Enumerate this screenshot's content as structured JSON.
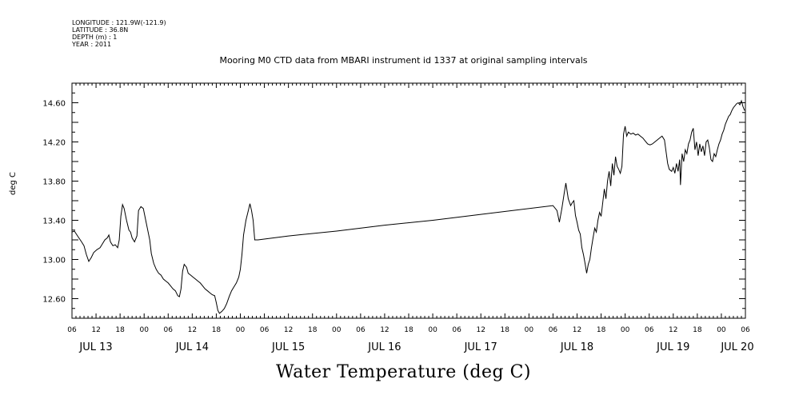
{
  "header": {
    "longitude": "LONGITUDE : 121.9W(-121.9)",
    "latitude": "LATITUDE : 36.8N",
    "depth": "DEPTH (m) : 1",
    "year": "YEAR : 2011"
  },
  "chart_data": {
    "type": "line",
    "title": "Mooring M0 CTD data from MBARI instrument id 1337 at original sampling intervals",
    "subtitle": "Water Temperature (deg C)",
    "ylabel": "deg C",
    "xlabel": "",
    "ylim": [
      12.4,
      14.8
    ],
    "yticks": [
      "12.60",
      "13.00",
      "13.40",
      "13.80",
      "14.20",
      "14.60"
    ],
    "xlim_hours": [
      6,
      174
    ],
    "hour_tick_labels": [
      "06",
      "12",
      "18",
      "00",
      "06",
      "12",
      "18",
      "00",
      "06",
      "12",
      "18",
      "00",
      "06",
      "12",
      "18",
      "00",
      "06",
      "12",
      "18",
      "00",
      "06",
      "12",
      "18",
      "00",
      "06",
      "12",
      "18",
      "00",
      "06"
    ],
    "day_labels": [
      {
        "label": "JUL 13",
        "hour": 12
      },
      {
        "label": "JUL 14",
        "hour": 36
      },
      {
        "label": "JUL 15",
        "hour": 60
      },
      {
        "label": "JUL 16",
        "hour": 84
      },
      {
        "label": "JUL 17",
        "hour": 108
      },
      {
        "label": "JUL 18",
        "hour": 132
      },
      {
        "label": "JUL 19",
        "hour": 156
      },
      {
        "label": "JUL 20",
        "hour": 172
      }
    ],
    "x_unit": "hours after 00:00 JUL 13, 2011",
    "series": [
      {
        "values": [
          [
            6.0,
            13.28
          ],
          [
            6.6,
            13.29
          ],
          [
            7.4,
            13.24
          ],
          [
            8.4,
            13.18
          ],
          [
            9.0,
            13.14
          ],
          [
            9.6,
            13.05
          ],
          [
            10.2,
            12.98
          ],
          [
            10.8,
            13.02
          ],
          [
            11.4,
            13.07
          ],
          [
            12.2,
            13.1
          ],
          [
            13.0,
            13.12
          ],
          [
            13.6,
            13.16
          ],
          [
            14.2,
            13.2
          ],
          [
            14.8,
            13.22
          ],
          [
            15.2,
            13.25
          ],
          [
            15.6,
            13.18
          ],
          [
            16.2,
            13.14
          ],
          [
            16.8,
            13.15
          ],
          [
            17.4,
            13.12
          ],
          [
            17.8,
            13.2
          ],
          [
            18.2,
            13.44
          ],
          [
            18.6,
            13.56
          ],
          [
            19.0,
            13.52
          ],
          [
            19.6,
            13.4
          ],
          [
            20.2,
            13.3
          ],
          [
            20.6,
            13.28
          ],
          [
            21.0,
            13.22
          ],
          [
            21.6,
            13.18
          ],
          [
            22.2,
            13.24
          ],
          [
            22.6,
            13.5
          ],
          [
            23.2,
            13.54
          ],
          [
            23.8,
            13.52
          ],
          [
            24.4,
            13.4
          ],
          [
            24.8,
            13.32
          ],
          [
            25.4,
            13.2
          ],
          [
            25.8,
            13.06
          ],
          [
            26.4,
            12.96
          ],
          [
            27.0,
            12.9
          ],
          [
            27.6,
            12.86
          ],
          [
            28.2,
            12.84
          ],
          [
            28.8,
            12.8
          ],
          [
            29.4,
            12.78
          ],
          [
            30.0,
            12.76
          ],
          [
            30.6,
            12.73
          ],
          [
            31.2,
            12.7
          ],
          [
            31.8,
            12.68
          ],
          [
            32.4,
            12.63
          ],
          [
            32.8,
            12.62
          ],
          [
            33.2,
            12.7
          ],
          [
            33.6,
            12.88
          ],
          [
            34.0,
            12.95
          ],
          [
            34.6,
            12.92
          ],
          [
            35.0,
            12.86
          ],
          [
            35.6,
            12.84
          ],
          [
            36.2,
            12.82
          ],
          [
            36.8,
            12.8
          ],
          [
            37.4,
            12.78
          ],
          [
            38.0,
            12.76
          ],
          [
            38.6,
            12.73
          ],
          [
            39.2,
            12.7
          ],
          [
            39.8,
            12.68
          ],
          [
            40.4,
            12.66
          ],
          [
            41.0,
            12.64
          ],
          [
            41.6,
            12.63
          ],
          [
            42.0,
            12.56
          ],
          [
            42.4,
            12.48
          ],
          [
            42.8,
            12.45
          ],
          [
            43.4,
            12.47
          ],
          [
            44.0,
            12.5
          ],
          [
            44.6,
            12.55
          ],
          [
            45.2,
            12.62
          ],
          [
            45.8,
            12.68
          ],
          [
            46.4,
            12.72
          ],
          [
            47.0,
            12.76
          ],
          [
            47.6,
            12.82
          ],
          [
            48.0,
            12.9
          ],
          [
            48.4,
            13.05
          ],
          [
            48.8,
            13.25
          ],
          [
            49.4,
            13.4
          ],
          [
            50.0,
            13.5
          ],
          [
            50.4,
            13.57
          ],
          [
            50.8,
            13.5
          ],
          [
            51.2,
            13.4
          ],
          [
            51.6,
            13.2
          ],
          [
            52.4,
            13.2
          ],
          [
            60.0,
            13.24
          ],
          [
            72.0,
            13.29
          ],
          [
            84.0,
            13.35
          ],
          [
            96.0,
            13.4
          ],
          [
            108.0,
            13.46
          ],
          [
            126.0,
            13.55
          ],
          [
            127.0,
            13.5
          ],
          [
            127.6,
            13.38
          ],
          [
            128.2,
            13.52
          ],
          [
            128.8,
            13.68
          ],
          [
            129.2,
            13.78
          ],
          [
            129.8,
            13.62
          ],
          [
            130.4,
            13.55
          ],
          [
            130.8,
            13.58
          ],
          [
            131.2,
            13.6
          ],
          [
            131.6,
            13.45
          ],
          [
            132.0,
            13.38
          ],
          [
            132.4,
            13.3
          ],
          [
            132.8,
            13.26
          ],
          [
            133.2,
            13.12
          ],
          [
            133.6,
            13.05
          ],
          [
            134.0,
            12.96
          ],
          [
            134.4,
            12.86
          ],
          [
            134.8,
            12.95
          ],
          [
            135.2,
            13.0
          ],
          [
            135.6,
            13.12
          ],
          [
            136.0,
            13.22
          ],
          [
            136.4,
            13.32
          ],
          [
            136.8,
            13.28
          ],
          [
            137.2,
            13.4
          ],
          [
            137.6,
            13.48
          ],
          [
            138.0,
            13.44
          ],
          [
            138.4,
            13.58
          ],
          [
            138.8,
            13.72
          ],
          [
            139.2,
            13.62
          ],
          [
            139.6,
            13.8
          ],
          [
            140.0,
            13.9
          ],
          [
            140.4,
            13.75
          ],
          [
            140.8,
            13.98
          ],
          [
            141.2,
            13.86
          ],
          [
            141.6,
            14.05
          ],
          [
            142.0,
            13.95
          ],
          [
            142.4,
            13.92
          ],
          [
            142.8,
            13.88
          ],
          [
            143.2,
            13.95
          ],
          [
            143.6,
            14.28
          ],
          [
            144.0,
            14.36
          ],
          [
            144.4,
            14.26
          ],
          [
            144.8,
            14.3
          ],
          [
            145.4,
            14.28
          ],
          [
            146.0,
            14.29
          ],
          [
            146.6,
            14.27
          ],
          [
            147.2,
            14.28
          ],
          [
            147.8,
            14.26
          ],
          [
            148.4,
            14.24
          ],
          [
            149.0,
            14.21
          ],
          [
            149.6,
            14.18
          ],
          [
            150.2,
            14.17
          ],
          [
            150.8,
            14.18
          ],
          [
            151.4,
            14.2
          ],
          [
            152.0,
            14.22
          ],
          [
            152.6,
            14.24
          ],
          [
            153.2,
            14.26
          ],
          [
            153.8,
            14.22
          ],
          [
            154.2,
            14.1
          ],
          [
            154.6,
            13.98
          ],
          [
            155.0,
            13.92
          ],
          [
            155.6,
            13.9
          ],
          [
            156.0,
            13.94
          ],
          [
            156.4,
            13.88
          ],
          [
            156.8,
            13.98
          ],
          [
            157.2,
            13.9
          ],
          [
            157.6,
            14.02
          ],
          [
            157.8,
            13.76
          ],
          [
            158.2,
            14.08
          ],
          [
            158.6,
            14.0
          ],
          [
            159.0,
            14.12
          ],
          [
            159.4,
            14.08
          ],
          [
            159.8,
            14.18
          ],
          [
            160.2,
            14.22
          ],
          [
            160.6,
            14.3
          ],
          [
            161.0,
            14.34
          ],
          [
            161.4,
            14.12
          ],
          [
            161.8,
            14.2
          ],
          [
            162.2,
            14.06
          ],
          [
            162.6,
            14.18
          ],
          [
            163.0,
            14.1
          ],
          [
            163.4,
            14.16
          ],
          [
            163.8,
            14.06
          ],
          [
            164.2,
            14.2
          ],
          [
            164.6,
            14.22
          ],
          [
            165.0,
            14.14
          ],
          [
            165.4,
            14.02
          ],
          [
            165.8,
            14.0
          ],
          [
            166.2,
            14.08
          ],
          [
            166.6,
            14.05
          ],
          [
            167.0,
            14.12
          ],
          [
            167.4,
            14.18
          ],
          [
            167.8,
            14.22
          ],
          [
            168.2,
            14.28
          ],
          [
            168.6,
            14.32
          ],
          [
            169.0,
            14.38
          ],
          [
            169.4,
            14.42
          ],
          [
            169.8,
            14.46
          ],
          [
            170.2,
            14.48
          ],
          [
            170.6,
            14.52
          ],
          [
            171.0,
            14.55
          ],
          [
            171.4,
            14.57
          ],
          [
            171.8,
            14.59
          ],
          [
            172.2,
            14.6
          ],
          [
            172.6,
            14.58
          ],
          [
            173.0,
            14.62
          ],
          [
            173.4,
            14.56
          ],
          [
            173.8,
            14.52
          ]
        ]
      }
    ]
  }
}
